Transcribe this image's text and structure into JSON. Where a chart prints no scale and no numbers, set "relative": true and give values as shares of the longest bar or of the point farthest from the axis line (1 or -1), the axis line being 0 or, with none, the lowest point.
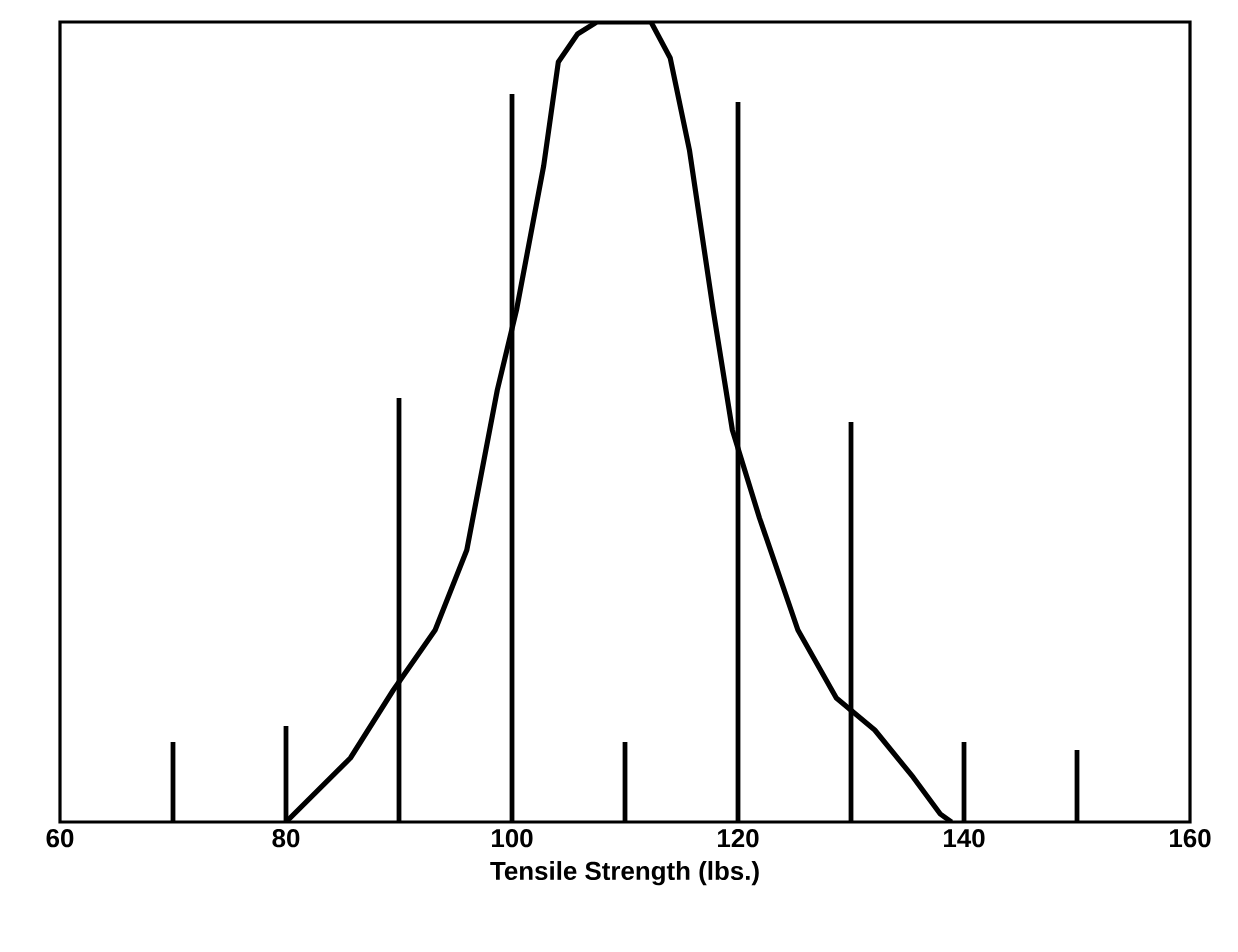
{
  "chart_data": {
    "type": "line",
    "xlabel": "Tensile Strength (lbs.)",
    "relative": true,
    "xlim": [
      60,
      160
    ],
    "xticks": [
      60,
      80,
      100,
      120,
      140,
      160
    ],
    "grid": false,
    "marker": "none",
    "series": [
      {
        "type": "bar",
        "color": "#000000",
        "x": [
          70,
          80,
          90,
          100,
          110,
          120,
          130,
          140,
          150
        ],
        "values": [
          0.1,
          0.12,
          0.53,
          0.91,
          0.1,
          0.9,
          0.5,
          0.1,
          0.09
        ]
      },
      {
        "line_style": "solid",
        "color": "#000000",
        "x": [
          80,
          85.7,
          89.5,
          93.2,
          96,
          98.7,
          100.4,
          102.8,
          104.1,
          105.8,
          107.5,
          112.3,
          114,
          115.7,
          117.8,
          119.5,
          121.9,
          125.3,
          128.7,
          132.1,
          135.5,
          137.9,
          138.9
        ],
        "values": [
          0,
          0.08,
          0.165,
          0.24,
          0.34,
          0.54,
          0.64,
          0.82,
          0.95,
          0.985,
          1,
          1,
          0.955,
          0.84,
          0.64,
          0.49,
          0.38,
          0.24,
          0.155,
          0.115,
          0.056,
          0.01,
          0
        ]
      }
    ]
  }
}
